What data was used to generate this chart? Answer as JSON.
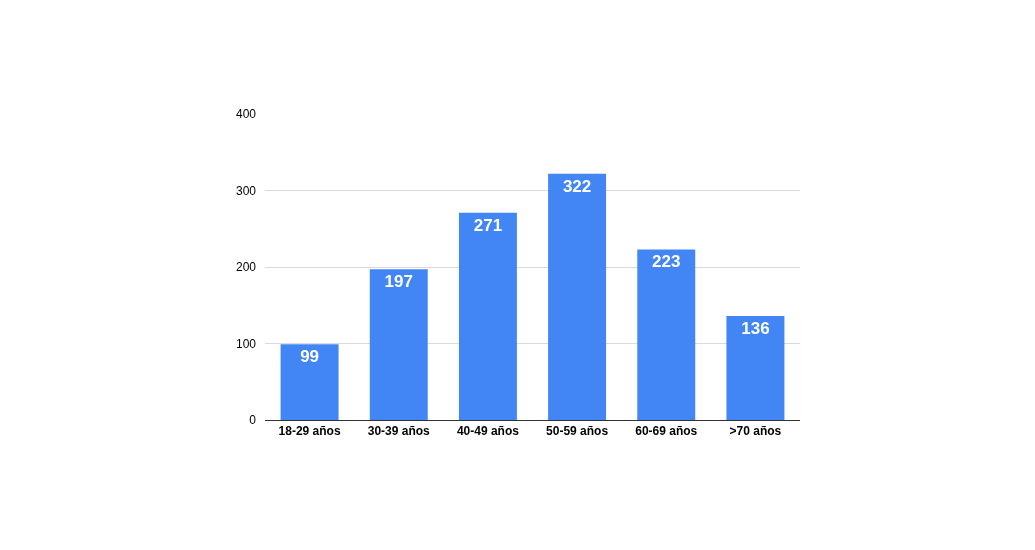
{
  "chart_data": {
    "type": "bar",
    "categories": [
      "18-29 años",
      "30-39 años",
      "40-49 años",
      "50-59 años",
      "60-69 años",
      ">70 años"
    ],
    "values": [
      99,
      197,
      271,
      322,
      223,
      136
    ],
    "color": "#4285f4",
    "ylim": [
      0,
      400
    ],
    "yticks": [
      0,
      100,
      200,
      300,
      400
    ],
    "grid": "y",
    "data_labels": true
  }
}
